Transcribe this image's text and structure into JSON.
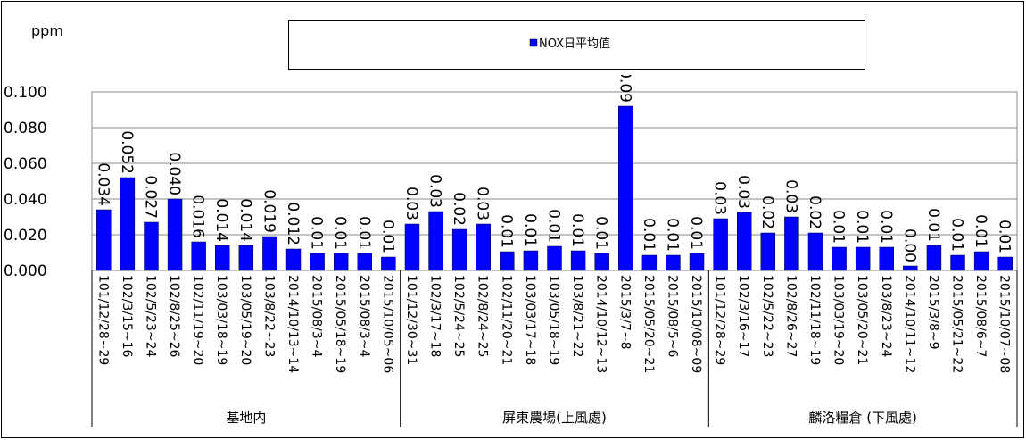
{
  "chart_data": {
    "type": "bar",
    "y_label": "ppm",
    "ylim": [
      0,
      0.1
    ],
    "yticks": [
      {
        "value": 0,
        "label": "0.000"
      },
      {
        "value": 0.02,
        "label": "0.020"
      },
      {
        "value": 0.04,
        "label": "0.040"
      },
      {
        "value": 0.06,
        "label": "0.060"
      },
      {
        "value": 0.08,
        "label": "0.080"
      },
      {
        "value": 0.1,
        "label": "0.100"
      }
    ],
    "grid": true,
    "groups": [
      {
        "label": "基地内",
        "categories": [
          "101/12/28~29",
          "102/3/15~16",
          "102/5/23~24",
          "102/8/25~26",
          "102/11/19~20",
          "103/03/18~19",
          "103/05/19~20",
          "103/8/22~23",
          "2014/10/13~14",
          "2015/08/3~4",
          "2015/05/18~19",
          "2015/08/3~4",
          "2015/10/05~06"
        ]
      },
      {
        "label": "屏東農場(上風處)",
        "categories": [
          "101/12/30~31",
          "102/3/17~18",
          "102/5/24~25",
          "102/8/24~25",
          "102/11/20~21",
          "103/03/17~18",
          "103/05/18~19",
          "103/8/21~22",
          "2014/10/12~13",
          "2015/3/7~8",
          "2015/05/20~21",
          "2015/08/5~6",
          "2015/10/08~09"
        ]
      },
      {
        "label": "麟洛糧倉 (下風處)",
        "categories": [
          "101/12/28~29",
          "102/3/16~17",
          "102/5/22~23",
          "102/8/26~27",
          "102/11/18~19",
          "103/03/19~20",
          "103/05/20~21",
          "103/8/23~24",
          "2014/10/11~12",
          "2015/3/8~9",
          "2015/05/21~22",
          "2015/08/6~7",
          "2015/10/07~08"
        ]
      }
    ],
    "series": [
      {
        "name": "NOX日平均值",
        "color": "#0000ff",
        "values": [
          0.034,
          0.052,
          0.027,
          0.04,
          0.016,
          0.014,
          0.014,
          0.019,
          0.012,
          0.0095,
          0.0095,
          0.0095,
          0.0075,
          0.026,
          0.033,
          0.023,
          0.026,
          0.0105,
          0.011,
          0.0135,
          0.011,
          0.0095,
          0.092,
          0.0085,
          0.0085,
          0.0095,
          0.029,
          0.0325,
          0.021,
          0.03,
          0.021,
          0.013,
          0.013,
          0.013,
          0.0025,
          0.014,
          0.0085,
          0.0105,
          0.0075
        ],
        "value_labels": [
          "0.034",
          "0.052",
          "0.027",
          "0.040",
          "0.016",
          "0.014",
          "0.014",
          "0.019",
          "0.012",
          "0.01",
          "0.01",
          "0.01",
          "0.01",
          "0.03",
          "0.03",
          "0.02",
          "0.03",
          "0.01",
          "0.01",
          "0.01",
          "0.01",
          "0.01",
          "0.09",
          "0.01",
          "0.01",
          "0.01",
          "0.03",
          "0.03",
          "0.02",
          "0.03",
          "0.02",
          "0.01",
          "0.01",
          "0.01",
          "0.00",
          "0.01",
          "0.01",
          "0.01",
          "0.01"
        ]
      }
    ]
  }
}
